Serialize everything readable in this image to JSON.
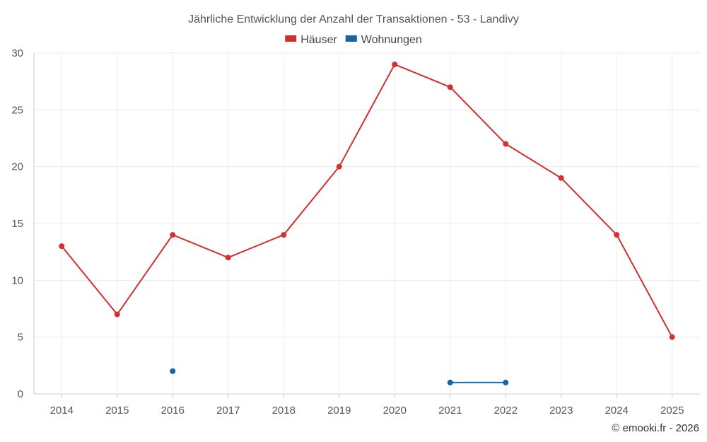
{
  "chart_data": {
    "type": "line",
    "title": "Jährliche Entwicklung der Anzahl der Transaktionen - 53 - Landivy",
    "categories": [
      "2014",
      "2015",
      "2016",
      "2017",
      "2018",
      "2019",
      "2020",
      "2021",
      "2022",
      "2023",
      "2024",
      "2025"
    ],
    "ylim": [
      0,
      30
    ],
    "yticks": [
      0,
      5,
      10,
      15,
      20,
      25,
      30
    ],
    "grid": true,
    "legend_position": "top-center",
    "series": [
      {
        "name": "Häuser",
        "color": "#d32f2f",
        "values": [
          13,
          7,
          14,
          12,
          14,
          20,
          29,
          27,
          22,
          19,
          14,
          5
        ]
      },
      {
        "name": "Wohnungen",
        "color": "#1565a0",
        "values": [
          null,
          null,
          2,
          null,
          null,
          null,
          null,
          1,
          1,
          null,
          null,
          null
        ]
      }
    ]
  },
  "credit": "© emooki.fr - 2026"
}
